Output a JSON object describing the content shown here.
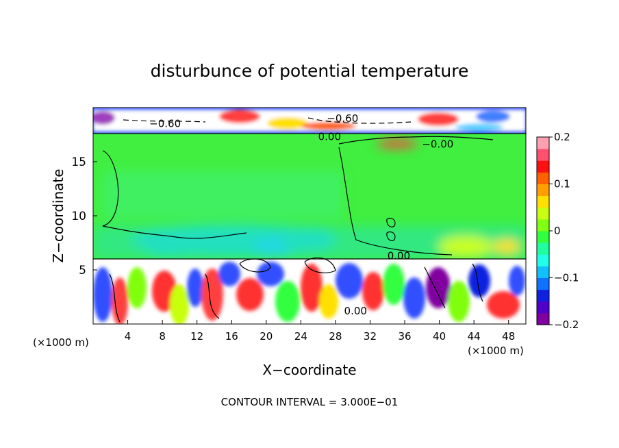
{
  "chart_data": {
    "type": "heatmap",
    "title": "disturbunce of potential temperature",
    "xlabel": "X−coordinate",
    "ylabel": "Z−coordinate",
    "x_unit_left": "(×1000 m)",
    "x_unit_right": "(×1000 m)",
    "xlim": [
      0,
      50
    ],
    "ylim": [
      0,
      20
    ],
    "x_ticks": [
      4,
      8,
      12,
      16,
      20,
      24,
      28,
      32,
      36,
      40,
      44,
      48
    ],
    "y_ticks": [
      5,
      10,
      15
    ],
    "colorbar": {
      "min": -0.2,
      "max": 0.2,
      "tick_values": [
        0.2,
        0.1,
        0,
        -0.1,
        -0.2
      ],
      "tick_labels": [
        "0.2",
        "0.1",
        "0",
        "−0.1",
        "−0.2"
      ],
      "colors": [
        "#8000a0",
        "#5000c8",
        "#1020e0",
        "#1070ff",
        "#10c0ff",
        "#20ffe8",
        "#20ffa0",
        "#30ff40",
        "#80ff10",
        "#c8ff10",
        "#ffe000",
        "#ffa000",
        "#ff6000",
        "#ff1010",
        "#ff5070",
        "#ffa0b0"
      ]
    },
    "contour_labels": [
      {
        "x": 6.5,
        "z": 18.5,
        "text": "−0.60"
      },
      {
        "x": 27,
        "z": 19.0,
        "text": "−0.60"
      },
      {
        "x": 26,
        "z": 17.3,
        "text": "0.00"
      },
      {
        "x": 38,
        "z": 16.6,
        "text": "−0.00"
      },
      {
        "x": 34,
        "z": 6.3,
        "text": "0.00"
      },
      {
        "x": 29,
        "z": 1.2,
        "text": "0.00"
      }
    ],
    "footer": "CONTOUR INTERVAL = 3.000E−01"
  }
}
